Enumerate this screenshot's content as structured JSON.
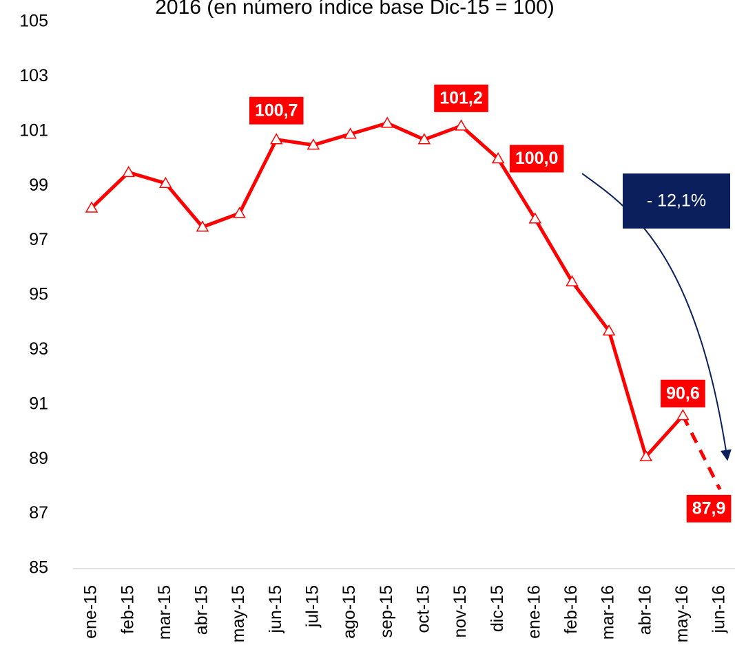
{
  "chart_data": {
    "type": "line",
    "title": "2016 (en número índice base Dic-15 = 100)",
    "categories": [
      "ene-15",
      "feb-15",
      "mar-15",
      "abr-15",
      "may-15",
      "jun-15",
      "jul-15",
      "ago-15",
      "sep-15",
      "oct-15",
      "nov-15",
      "dic-15",
      "ene-16",
      "feb-16",
      "mar-16",
      "abr-16",
      "may-16",
      "jun-16"
    ],
    "values": [
      98.2,
      99.5,
      99.1,
      97.5,
      98.0,
      100.7,
      100.5,
      100.9,
      101.3,
      100.7,
      101.2,
      100.0,
      97.8,
      95.5,
      93.7,
      89.1,
      90.6,
      87.9
    ],
    "value_labels": [
      null,
      null,
      null,
      null,
      null,
      "100,7",
      null,
      null,
      null,
      null,
      "101,2",
      "100,0",
      null,
      null,
      null,
      null,
      "90,6",
      "87,9"
    ],
    "color": "#ff0000",
    "last_segment_style": "dashed",
    "ylim": [
      85,
      105
    ],
    "yticks": [
      85,
      87,
      89,
      91,
      93,
      95,
      97,
      99,
      101,
      103,
      105
    ],
    "annotation": "- 12,1%",
    "annotation_color": "#0a1f5c"
  }
}
